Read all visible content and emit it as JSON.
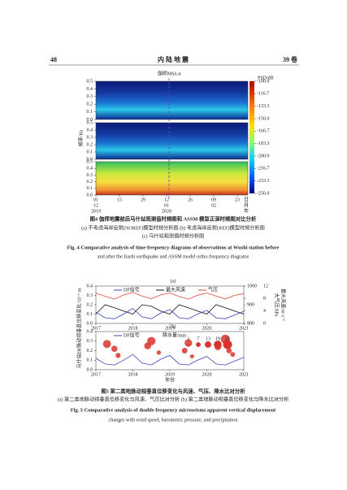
{
  "header": {
    "page": "48",
    "journal": "内 陆 地 震",
    "volume": "39 卷"
  },
  "chart_data": [
    {
      "type": "spectrogram",
      "annotation": "伽师MS6.4",
      "ylabel": "频率/Hz",
      "panels": 3,
      "ylim": [
        0,
        0.5
      ],
      "yticks": [
        {
          "value": 0,
          "label": "0.0"
        },
        0.1,
        0.2,
        0.3,
        0.4,
        0.5
      ],
      "categories": [
        [
          "01",
          "12",
          "2019"
        ],
        [
          "15"
        ],
        [
          "29"
        ],
        [
          "12",
          "01",
          "2020"
        ],
        [
          "26"
        ],
        [
          "09",
          "02"
        ],
        [
          "23"
        ]
      ],
      "x_units": [
        "日",
        "月",
        "年"
      ],
      "colorbar": {
        "label": "PSD/dB",
        "lim": [
          -250,
          -100
        ],
        "ticks": [
          {
            "value": -100,
            "label": "-100.0"
          },
          -116.7,
          -133.3,
          {
            "value": -150,
            "label": "-150.0"
          },
          -166.7,
          -183.3,
          {
            "value": -200,
            "label": "-200.0"
          },
          -216.7,
          -233.3,
          {
            "value": -250,
            "label": "-250.0"
          }
        ]
      }
    },
    {
      "type": "line",
      "title": "(a)",
      "ylabel": "乌什站DF脉动视垂直位移变化/10⁻⁶ m",
      "xlim": [
        2017,
        2021
      ],
      "xticks": [
        2017,
        2018,
        2019,
        2020,
        2021
      ],
      "x": [
        2017,
        2017.25,
        2017.5,
        2017.75,
        2018,
        2018.25,
        2018.5,
        2018.75,
        2019,
        2019.25,
        2019.5,
        2019.75,
        2020,
        2020.25,
        2020.5,
        2020.75,
        2021
      ],
      "ylim": [
        0,
        0.4
      ],
      "yticks": [
        {
          "value": 0,
          "label": "0.0"
        },
        0.1,
        0.2,
        0.3,
        0.4
      ],
      "y2lim": [
        800,
        1000
      ],
      "y2ticks": [
        800,
        900,
        1000
      ],
      "y2label": "大气压/hPa",
      "y3lim": [
        0,
        12
      ],
      "y3ticks": [
        0,
        4,
        8,
        12
      ],
      "y3label": "最大风速/m·s⁻¹",
      "series": [
        {
          "name": "DF信号",
          "color": "#3a46b0",
          "values": [
            0.12,
            0.06,
            0.05,
            0.1,
            0.16,
            0.07,
            0.05,
            0.11,
            0.15,
            0.06,
            0.05,
            0.1,
            0.14,
            0.06,
            0.05,
            0.09,
            0.13
          ]
        },
        {
          "name": "最大风速",
          "color": "#111111",
          "axis": "y3",
          "values": [
            3,
            6,
            5,
            4,
            3,
            6,
            5.5,
            4,
            3,
            6,
            5,
            4,
            3,
            6,
            5,
            4,
            3
          ]
        },
        {
          "name": "气压",
          "color": "#e0483c",
          "axis": "y2",
          "values": [
            962,
            945,
            930,
            952,
            966,
            946,
            932,
            952,
            963,
            944,
            930,
            951,
            963,
            946,
            931,
            950,
            960
          ]
        }
      ]
    },
    {
      "type": "bubble",
      "title": "(b)",
      "xlabel": "年份",
      "xlim": [
        2017,
        2021
      ],
      "xticks": [
        2017,
        2018,
        2019,
        2020,
        2021
      ],
      "x": [
        2017,
        2017.25,
        2017.5,
        2017.75,
        2018,
        2018.25,
        2018.5,
        2018.75,
        2019,
        2019.25,
        2019.5,
        2019.75,
        2020,
        2020.25,
        2020.5,
        2020.75,
        2021
      ],
      "ylim": [
        0,
        0.4
      ],
      "yticks": [
        {
          "value": 0,
          "label": "0.0"
        },
        0.1,
        0.2,
        0.3,
        0.4
      ],
      "series": [
        {
          "name": "DF信号",
          "color": "#3a46b0",
          "values": [
            0.12,
            0.06,
            0.05,
            0.1,
            0.16,
            0.07,
            0.05,
            0.11,
            0.15,
            0.06,
            0.05,
            0.1,
            0.14,
            0.06,
            0.05,
            0.09,
            0.13
          ]
        }
      ],
      "bubbles": {
        "name": "降水量/mm",
        "color": "#d9332b",
        "x": [
          2017.3,
          2017.5,
          2017.6,
          2018.4,
          2018.5,
          2018.7,
          2019.4,
          2019.5,
          2019.6,
          2020.3,
          2020.5,
          2020.6,
          2020.7
        ],
        "y": [
          0.27,
          0.22,
          0.15,
          0.25,
          0.3,
          0.18,
          0.2,
          0.28,
          0.14,
          0.24,
          0.32,
          0.2,
          0.16
        ],
        "size": [
          20,
          12,
          8,
          15,
          22,
          6,
          10,
          18,
          5,
          14,
          25,
          9,
          7
        ],
        "legend_sizes": [
          1,
          7,
          13,
          19,
          25
        ]
      }
    }
  ],
  "captions": {
    "fig4": [
      "图4  伽师地震前后乌什站观测值时频图和 ASSM 模型正演时频图对比分析",
      "(a) 不考虑海岸反射(NOREF)模型时频分析图    (b) 考虑海岸反射(REF)模型时频分析图",
      "(c) 乌什站观测值时频分析图",
      "Fig. 4   Comparative analysis of time-frequency diagrams of observations at Wushi station before",
      "and after the Jiashi earthquake and ASSM model ortho-frequency diagrams"
    ],
    "fig5": [
      "图5   第二类地脉动视垂直位移变化与风速、气压、降水比对分析",
      "(a) 第二类地脉动视垂直位移变化与风速、气压比对分析   (b) 第二类地脉动视垂直位移变化与降水比对分析",
      "Fig. 5   Comparative analysis of double frequency microseisms apparent vertical displacement",
      "changes with wind speed, barometric pressure, and precipitation"
    ]
  }
}
